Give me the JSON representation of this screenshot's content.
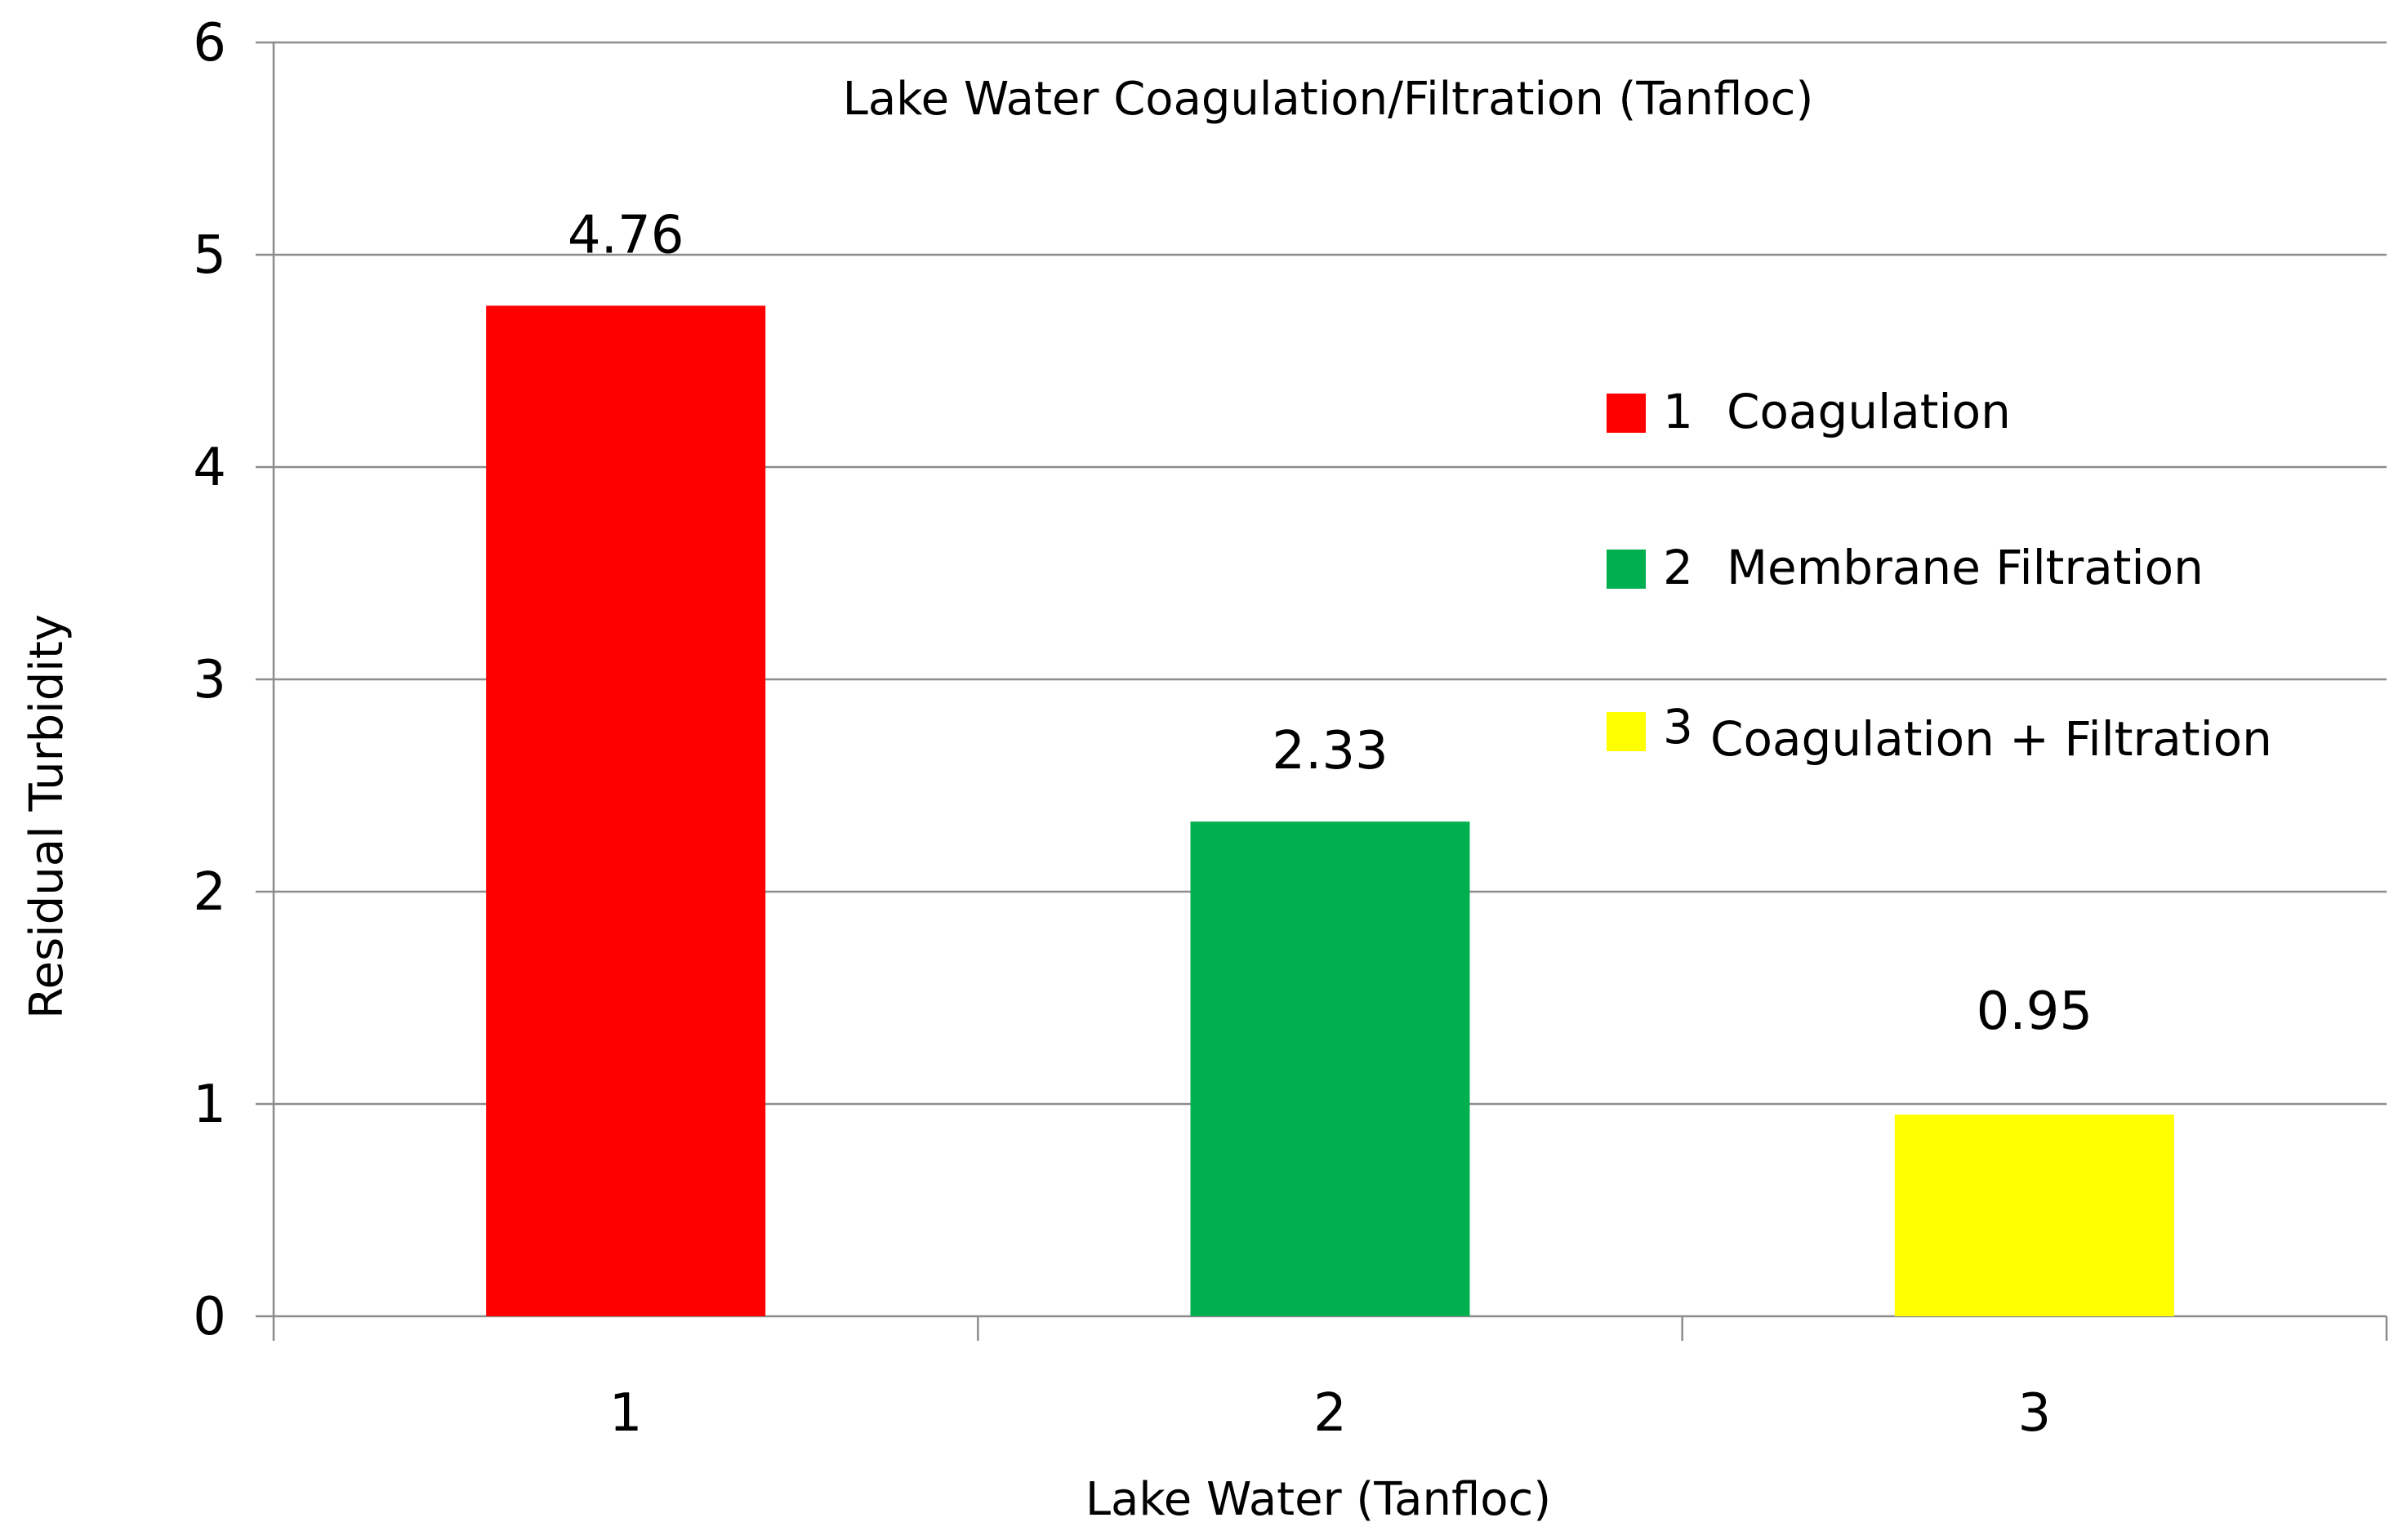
{
  "chart_data": {
    "type": "bar",
    "title": "Lake Water Coagulation/Filtration (Tanfloc)",
    "xlabel": "Lake Water (Tanfloc)",
    "ylabel": "Residual Turbidity",
    "categories": [
      "1",
      "2",
      "3"
    ],
    "values": [
      4.76,
      2.33,
      0.95
    ],
    "data_labels": [
      "4.76",
      "2.33",
      "0.95"
    ],
    "bar_colors": [
      "#ff0000",
      "#00b050",
      "#ffff00"
    ],
    "ylim": [
      0,
      6
    ],
    "yticks": [
      "0",
      "1",
      "2",
      "3",
      "4",
      "5",
      "6"
    ],
    "grid": true,
    "legend": {
      "placement": "right",
      "entries": [
        {
          "number": "1",
          "label": "Coagulation",
          "color": "#ff0000"
        },
        {
          "number": "2",
          "label": "Membrane Filtration",
          "color": "#00b050"
        },
        {
          "number": "3",
          "label": "Coagulation + Filtration",
          "color": "#ffff00"
        }
      ]
    }
  }
}
